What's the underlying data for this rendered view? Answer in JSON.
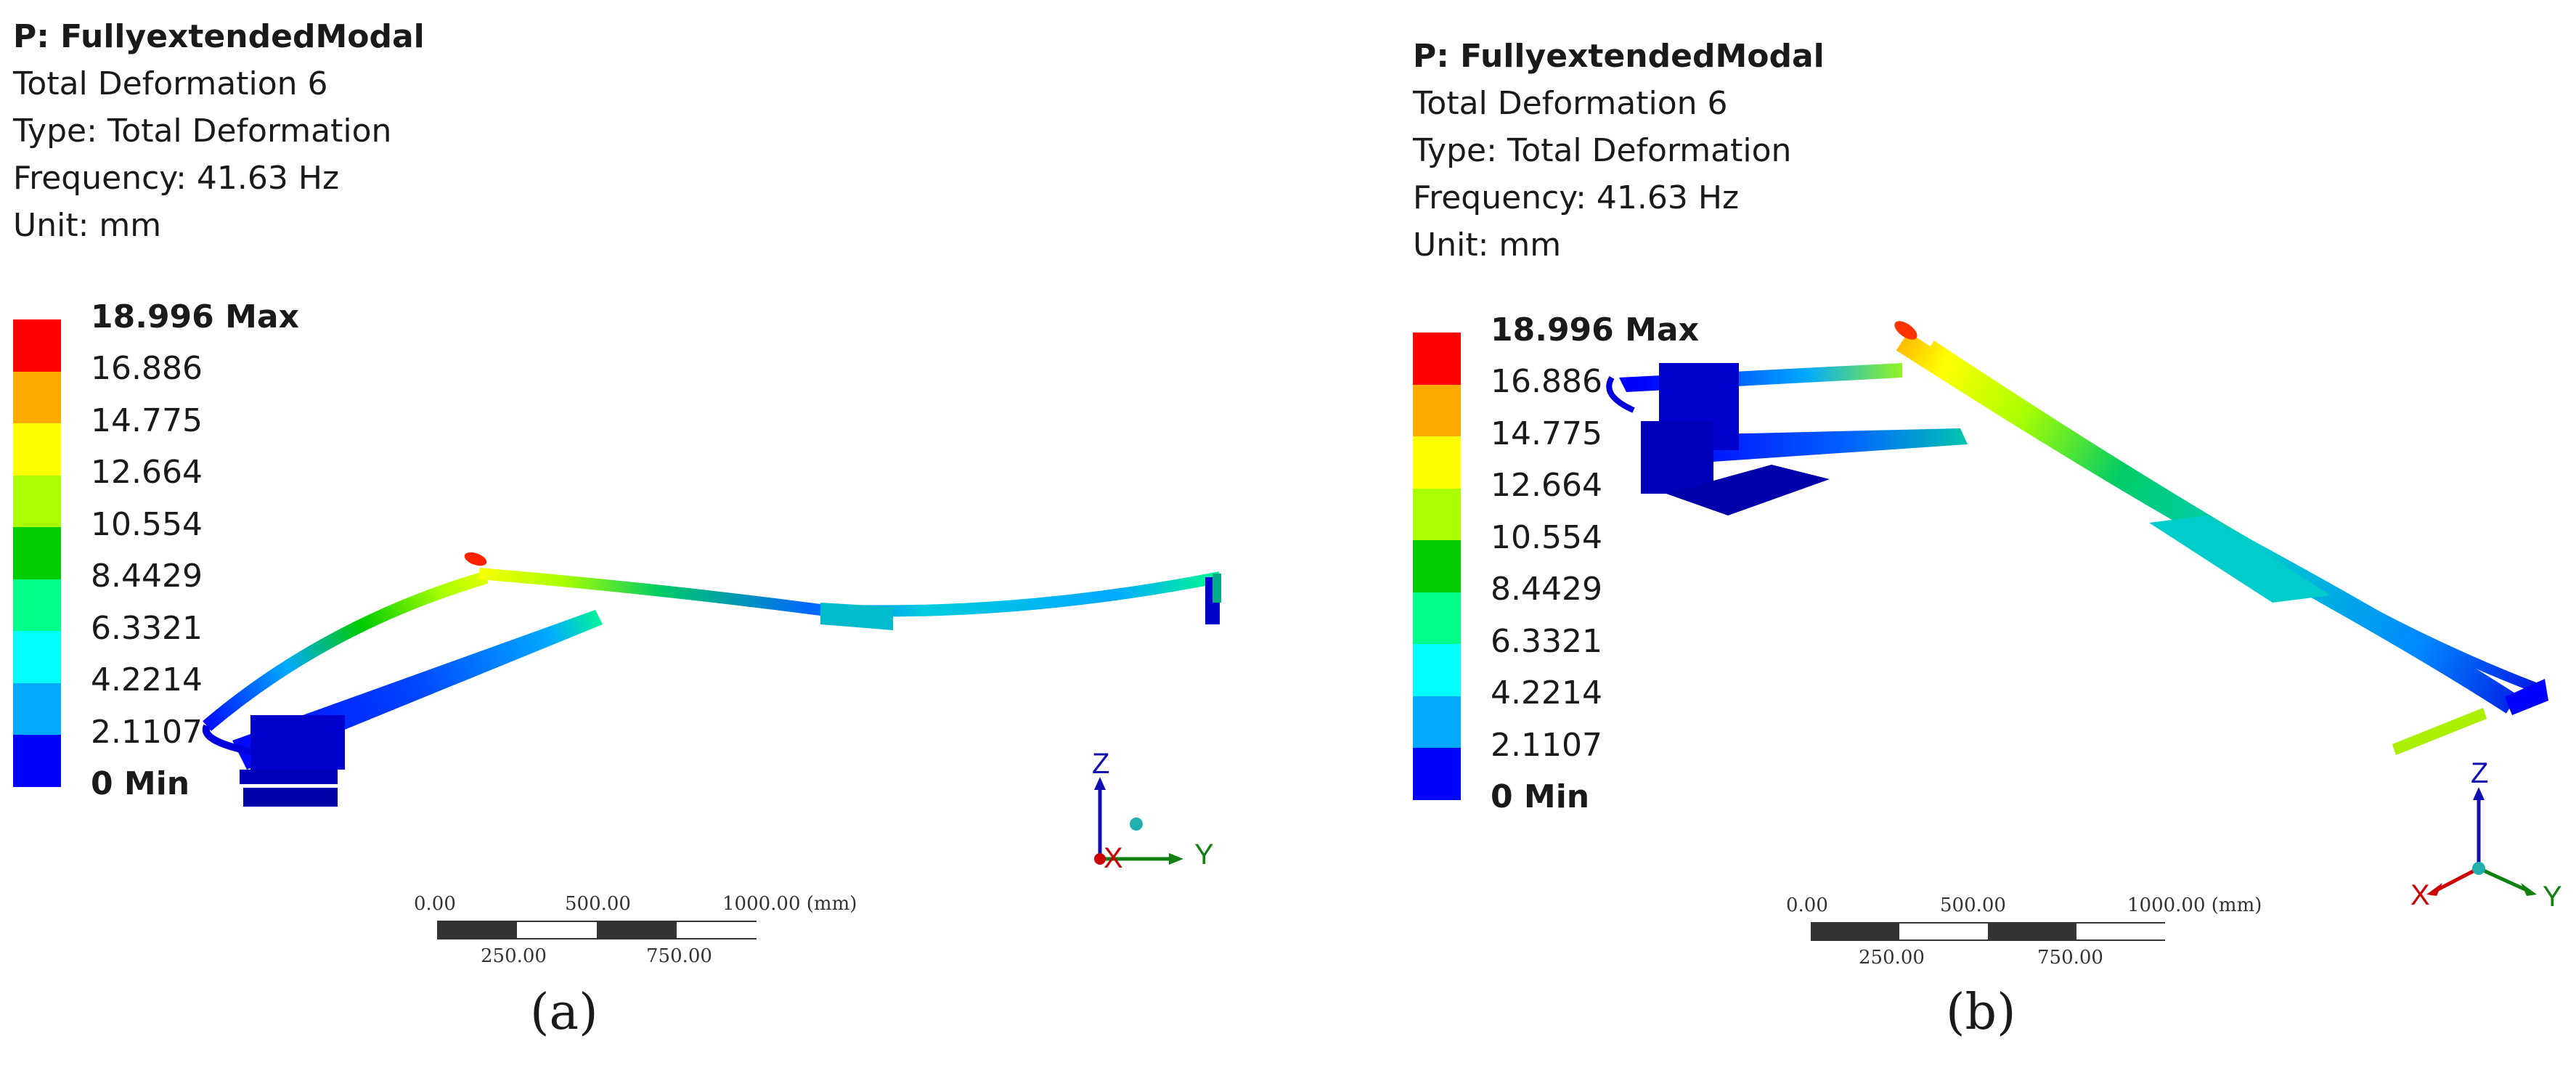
{
  "panels": [
    {
      "id": "a",
      "title": {
        "project": "P: FullyextendedModal",
        "result": "Total Deformation 6",
        "type": "Type: Total Deformation",
        "frequency": "Frequency: 41.63 Hz",
        "unit": "Unit: mm"
      },
      "legend": [
        "18.996 Max",
        "16.886",
        "14.775",
        "12.664",
        "10.554",
        "8.4429",
        "6.3321",
        "4.2214",
        "2.1107",
        "0 Min"
      ],
      "triad": {
        "z": "Z",
        "y": "Y",
        "x": "X"
      },
      "scale": {
        "t0": "0.00",
        "t500": "500.00",
        "t1000": "1000.00 (mm)",
        "t250": "250.00",
        "t750": "750.00"
      },
      "caption": "(a)"
    },
    {
      "id": "b",
      "title": {
        "project": "P: FullyextendedModal",
        "result": "Total Deformation 6",
        "type": "Type: Total Deformation",
        "frequency": "Frequency: 41.63 Hz",
        "unit": "Unit: mm"
      },
      "legend": [
        "18.996 Max",
        "16.886",
        "14.775",
        "12.664",
        "10.554",
        "8.4429",
        "6.3321",
        "4.2214",
        "2.1107",
        "0 Min"
      ],
      "triad": {
        "z": "Z",
        "y": "Y",
        "x": "X"
      },
      "scale": {
        "t0": "0.00",
        "t500": "500.00",
        "t1000": "1000.00 (mm)",
        "t250": "250.00",
        "t750": "750.00"
      },
      "caption": "(b)"
    }
  ],
  "legend_colors": [
    "#ff0000",
    "#ffaa00",
    "#ffff00",
    "#aaff00",
    "#00cc00",
    "#00ff88",
    "#00ffff",
    "#00aaff",
    "#0000ff"
  ]
}
